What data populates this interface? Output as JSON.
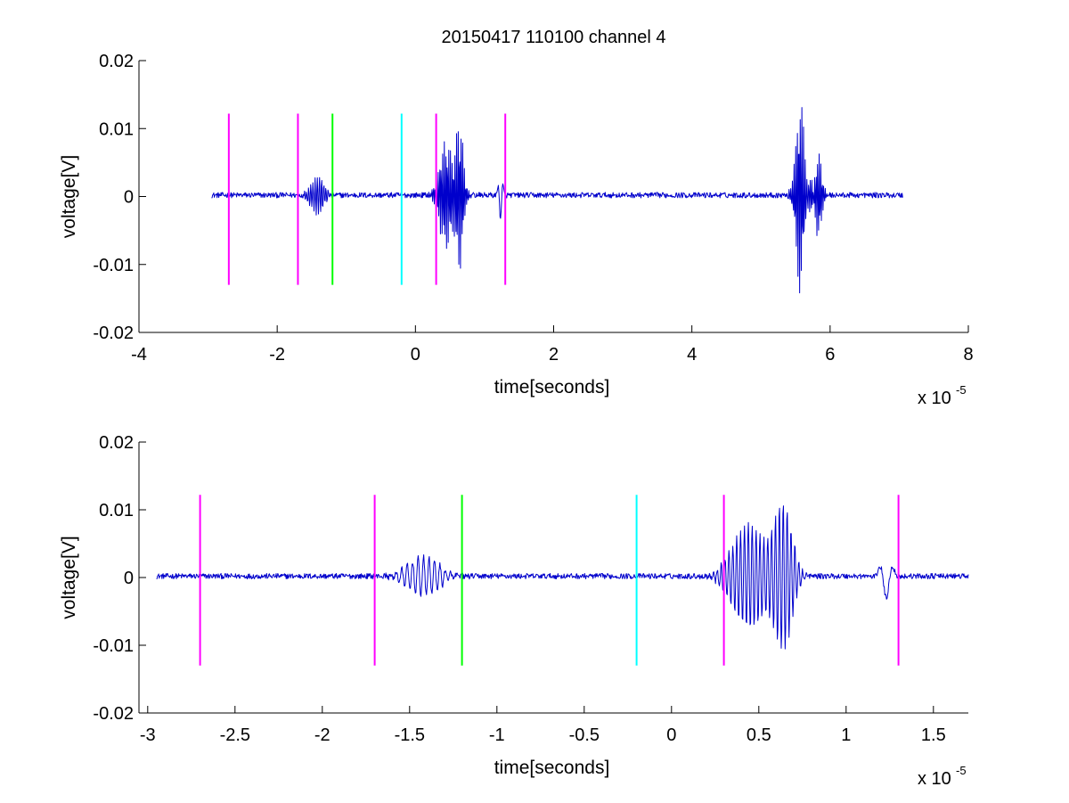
{
  "chart_data": [
    {
      "type": "line",
      "title": "20150417 110100 channel 4",
      "xlabel": "time[seconds]",
      "ylabel": "voltage[V]",
      "x_multiplier": "x 10",
      "x_exponent": "-5",
      "xlim": [
        -4,
        8
      ],
      "ylim": [
        -0.02,
        0.02
      ],
      "xticks": [
        -4,
        -2,
        0,
        2,
        4,
        6,
        8
      ],
      "xtick_labels": [
        "-4",
        "-2",
        "0",
        "2",
        "4",
        "6",
        "8"
      ],
      "yticks": [
        -0.02,
        -0.01,
        0,
        0.01,
        0.02
      ],
      "ytick_labels": [
        "-0.02",
        "-0.01",
        "0",
        "0.01",
        "0.02"
      ],
      "grid": false,
      "markers": [
        {
          "x": -2.7,
          "color": "#ff00ff"
        },
        {
          "x": -1.7,
          "color": "#ff00ff"
        },
        {
          "x": -1.2,
          "color": "#00ff00"
        },
        {
          "x": -0.2,
          "color": "#00ffff"
        },
        {
          "x": 0.3,
          "color": "#ff00ff"
        },
        {
          "x": 1.3,
          "color": "#ff00ff"
        }
      ],
      "marker_y_range": [
        -0.013,
        0.0122
      ],
      "series": [
        {
          "color": "#0000cc",
          "x_range": [
            -2.95,
            7.05
          ],
          "baseline": 0.0002,
          "noise": 0.0004,
          "events": [
            {
              "t": -1.42,
              "amp": 0.0028,
              "freq": 3.2,
              "decay": 0.09
            },
            {
              "t": 0.44,
              "amp": 0.0078,
              "freq": 4.5,
              "decay": 0.09
            },
            {
              "t": 0.64,
              "amp": 0.0105,
              "freq": 4.5,
              "decay": 0.05
            },
            {
              "t": 1.23,
              "amp": -0.0032,
              "freq": 1.2,
              "decay": 0.03
            },
            {
              "t": 5.58,
              "amp": -0.0115,
              "freq": 4.5,
              "decay": 0.06
            },
            {
              "t": 5.62,
              "amp": 0.0055,
              "freq": 4.2,
              "decay": 0.1
            },
            {
              "t": 5.82,
              "amp": 0.0068,
              "freq": 4.5,
              "decay": 0.05
            }
          ]
        }
      ]
    },
    {
      "type": "line",
      "xlabel": "time[seconds]",
      "ylabel": "voltage[V]",
      "x_multiplier": "x 10",
      "x_exponent": "-5",
      "xlim": [
        -3.05,
        1.7
      ],
      "ylim": [
        -0.02,
        0.02
      ],
      "xticks": [
        -3,
        -2.5,
        -2,
        -1.5,
        -1,
        -0.5,
        0,
        0.5,
        1,
        1.5
      ],
      "xtick_labels": [
        "-3",
        "-2.5",
        "-2",
        "-1.5",
        "-1",
        "-0.5",
        "0",
        "0.5",
        "1",
        "1.5"
      ],
      "yticks": [
        -0.02,
        -0.01,
        0,
        0.01,
        0.02
      ],
      "ytick_labels": [
        "-0.02",
        "-0.01",
        "0",
        "0.01",
        "0.02"
      ],
      "grid": false,
      "markers": [
        {
          "x": -2.7,
          "color": "#ff00ff"
        },
        {
          "x": -1.7,
          "color": "#ff00ff"
        },
        {
          "x": -1.2,
          "color": "#00ff00"
        },
        {
          "x": -0.2,
          "color": "#00ffff"
        },
        {
          "x": 0.3,
          "color": "#ff00ff"
        },
        {
          "x": 1.3,
          "color": "#ff00ff"
        }
      ],
      "marker_y_range": [
        -0.013,
        0.0122
      ],
      "series": [
        {
          "color": "#0000cc",
          "x_range": [
            -2.95,
            1.7
          ],
          "baseline": 0.0002,
          "noise": 0.0004,
          "events": [
            {
              "t": -1.42,
              "amp": 0.0028,
              "freq": 3.2,
              "decay": 0.09
            },
            {
              "t": 0.44,
              "amp": 0.0078,
              "freq": 4.5,
              "decay": 0.09
            },
            {
              "t": 0.64,
              "amp": 0.0105,
              "freq": 4.5,
              "decay": 0.05
            },
            {
              "t": 1.23,
              "amp": -0.0032,
              "freq": 1.2,
              "decay": 0.03
            }
          ]
        }
      ]
    }
  ]
}
